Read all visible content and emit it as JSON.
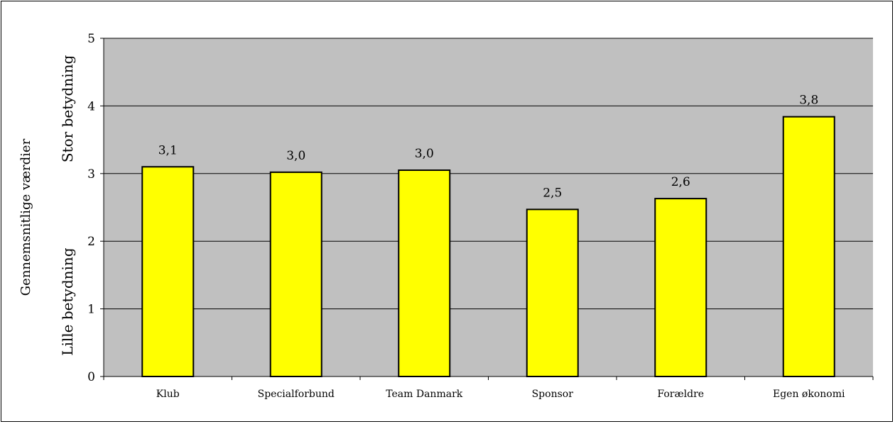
{
  "chart_data": {
    "type": "bar",
    "title": "",
    "categories": [
      "Klub",
      "Specialforbund",
      "Team Danmark",
      "Sponsor",
      "Forældre",
      "Egen økonomi"
    ],
    "values": [
      3.1,
      3.02,
      3.05,
      2.47,
      2.63,
      3.84
    ],
    "data_labels": [
      "3,1",
      "3,0",
      "3,0",
      "2,5",
      "2,6",
      "3,8"
    ],
    "ylabel": "Gennemsnitlige værdier",
    "y_annotations": {
      "high": "Stor betydning",
      "low": "Lille betydning"
    },
    "ylim": [
      0,
      5
    ],
    "yticks": [
      0,
      1,
      2,
      3,
      4,
      5
    ],
    "grid": true,
    "legend": "none",
    "colors": {
      "bar_fill": "#ffff00",
      "bar_stroke": "#000000",
      "plot_bg": "#c0c0c0",
      "grid": "#000000"
    }
  }
}
